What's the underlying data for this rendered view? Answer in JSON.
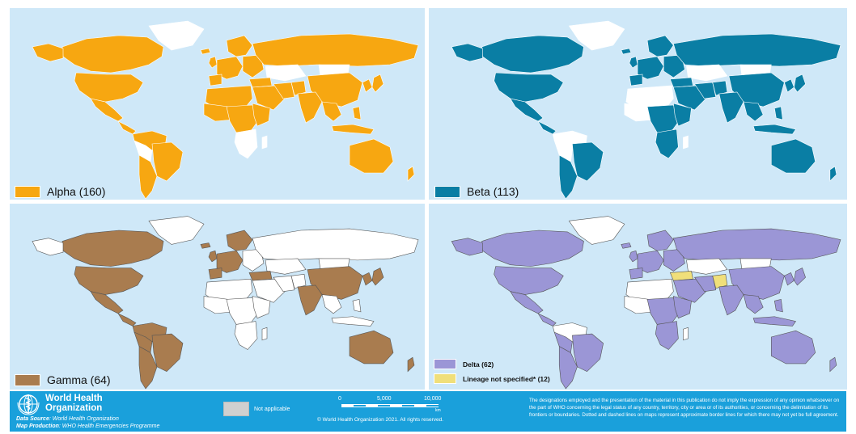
{
  "colors": {
    "ocean": "#cfe8f8",
    "not_applicable": "#ffffff",
    "alpha": "#f7a711",
    "beta": "#0a7ea4",
    "gamma": "#a97c4f",
    "delta": "#9b96d6",
    "lineage_not_specified": "#f0df7a",
    "footer": "#1aa0db"
  },
  "panels": [
    {
      "id": "alpha",
      "legend": [
        {
          "label": "Alpha (160)",
          "color": "#f7a711"
        }
      ]
    },
    {
      "id": "beta",
      "legend": [
        {
          "label": "Beta (113)",
          "color": "#0a7ea4"
        }
      ]
    },
    {
      "id": "gamma",
      "legend": [
        {
          "label": "Gamma (64)",
          "color": "#a97c4f"
        }
      ]
    },
    {
      "id": "delta",
      "legend": [
        {
          "label": "Delta (62)",
          "color": "#9b96d6"
        },
        {
          "label": "Lineage not specified* (12)",
          "color": "#f0df7a"
        }
      ]
    }
  ],
  "footer": {
    "org_line1": "World Health",
    "org_line2": "Organization",
    "data_source_label": "Data Source",
    "data_source_value": ": World Health Organization",
    "map_production_label": "Map Production",
    "map_production_value": ": WHO Health Emergencies Programme",
    "not_applicable_label": "Not applicable",
    "scale": {
      "ticks": [
        "0",
        "5,000",
        "10,000"
      ],
      "unit": "km"
    },
    "copyright": "© World Health Organization  2021.  All rights reserved.",
    "disclaimer": "The designations employed and the presentation of the material in this publication do not imply the expression of any opinion whatsoever on the part of WHO concerning the legal status of any country, territory, city or area or of its authorities, or concerning the delimitation of its frontiers or boundaries. Dotted and dashed lines on maps represent approximate border lines for which there may not yet be full agreement."
  }
}
